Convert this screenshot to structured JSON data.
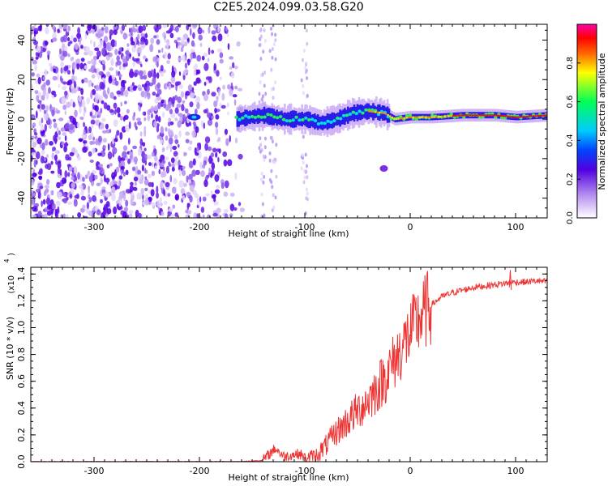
{
  "title": "C2E5.2024.099.03.58.G20",
  "chart_data": [
    {
      "type": "heatmap",
      "xlabel": "Height of straight line (km)",
      "ylabel": "Frequency (Hz)",
      "xlim": [
        -360,
        130
      ],
      "ylim": [
        -50,
        48
      ],
      "x_ticks": [
        -300,
        -200,
        -100,
        0,
        100
      ],
      "y_ticks": [
        -40,
        -20,
        0,
        20,
        40
      ],
      "colorbar": {
        "label": "Normalized spectral amplitude",
        "range": [
          0.0,
          1.0
        ],
        "ticks": [
          "0.0",
          "0.2",
          "0.4",
          "0.6",
          "0.8"
        ]
      },
      "features": {
        "noise_region_x": [
          -360,
          -155
        ],
        "signal_band": {
          "x_range": [
            -165,
            130
          ],
          "center_freq_hz": [
            [
              -165,
              0
            ],
            [
              -140,
              2
            ],
            [
              -120,
              0
            ],
            [
              -100,
              0
            ],
            [
              -85,
              -2
            ],
            [
              -70,
              0
            ],
            [
              -55,
              3
            ],
            [
              -40,
              4
            ],
            [
              -25,
              3
            ],
            [
              -15,
              0
            ],
            [
              0,
              1
            ],
            [
              20,
              1
            ],
            [
              50,
              2
            ],
            [
              80,
              2
            ],
            [
              100,
              1
            ],
            [
              130,
              2
            ]
          ]
        },
        "isolated_blob": {
          "x": -25,
          "freq": -25
        }
      }
    },
    {
      "type": "line",
      "xlabel": "Height of straight line (km)",
      "ylabel": "SNR (10 * v/v)",
      "y_scale_note": "(x10",
      "y_scale_exp": "4",
      "xlim": [
        -360,
        130
      ],
      "ylim": [
        0,
        1.45
      ],
      "x_ticks": [
        -300,
        -200,
        -100,
        0,
        100
      ],
      "y_ticks": [
        "0.0",
        "0.2",
        "0.4",
        "0.6",
        "0.8",
        "1.0",
        "1.2",
        "1.4"
      ],
      "series_color": "#ee3333",
      "points": [
        [
          -360,
          0.0
        ],
        [
          -300,
          0.0
        ],
        [
          -250,
          0.0
        ],
        [
          -200,
          0.0
        ],
        [
          -160,
          0.0
        ],
        [
          -140,
          0.01
        ],
        [
          -128,
          0.1
        ],
        [
          -120,
          0.04
        ],
        [
          -105,
          0.06
        ],
        [
          -100,
          0.03
        ],
        [
          -90,
          0.04
        ],
        [
          -80,
          0.12
        ],
        [
          -70,
          0.22
        ],
        [
          -60,
          0.3
        ],
        [
          -50,
          0.38
        ],
        [
          -40,
          0.46
        ],
        [
          -30,
          0.56
        ],
        [
          -20,
          0.68
        ],
        [
          -10,
          0.82
        ],
        [
          0,
          0.96
        ],
        [
          10,
          1.08
        ],
        [
          20,
          1.17
        ],
        [
          30,
          1.23
        ],
        [
          40,
          1.26
        ],
        [
          50,
          1.28
        ],
        [
          60,
          1.3
        ],
        [
          70,
          1.31
        ],
        [
          80,
          1.32
        ],
        [
          90,
          1.33
        ],
        [
          100,
          1.34
        ],
        [
          110,
          1.34
        ],
        [
          120,
          1.35
        ],
        [
          130,
          1.34
        ]
      ]
    }
  ]
}
